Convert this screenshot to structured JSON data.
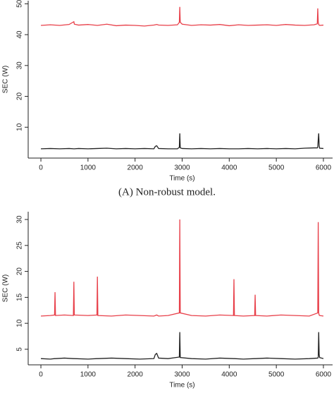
{
  "chart_data": [
    {
      "type": "line",
      "caption": "(A) Non-robust model.",
      "x_label": "Time (s)",
      "y_label": "SEC (W)",
      "x": [
        0,
        200,
        400,
        600,
        700,
        710,
        800,
        1000,
        1200,
        1400,
        1600,
        1800,
        2000,
        2200,
        2400,
        2430,
        2460,
        2500,
        2700,
        2900,
        2940,
        2950,
        2960,
        3000,
        3200,
        3400,
        3600,
        3800,
        4000,
        4200,
        4400,
        4600,
        4800,
        5000,
        5200,
        5400,
        5600,
        5800,
        5870,
        5880,
        5890,
        5900,
        5910,
        5920,
        6000
      ],
      "series": [
        {
          "color": "#e8404a",
          "values": [
            43,
            43.2,
            43,
            43.3,
            44.2,
            43.4,
            43.1,
            43.3,
            43,
            43.4,
            42.9,
            43.1,
            43,
            42.8,
            43.1,
            43.2,
            43.3,
            43.1,
            43,
            43.2,
            44,
            49,
            44,
            43.4,
            43,
            43.2,
            43.1,
            43.3,
            42.9,
            43.2,
            43,
            43.1,
            43.2,
            43,
            43.3,
            43.1,
            43,
            43.2,
            43.5,
            48.5,
            44,
            43.3,
            43.1,
            43,
            43.1
          ]
        },
        {
          "color": "#222222",
          "values": [
            3,
            3.1,
            3,
            3.1,
            3,
            3,
            3.1,
            3,
            3.1,
            3.2,
            3,
            3.1,
            3,
            3.1,
            3,
            3.8,
            4,
            3.1,
            3,
            3,
            3.5,
            8,
            3.3,
            3.1,
            3,
            3.1,
            3,
            3.1,
            3,
            3,
            3.1,
            3,
            3.1,
            3,
            3.1,
            3,
            3.2,
            3.3,
            3.3,
            3.5,
            6,
            8,
            4,
            3.2,
            3.1
          ]
        }
      ],
      "xlim": [
        -270,
        6195
      ],
      "xticks": [
        0,
        1000,
        2000,
        3000,
        4000,
        5000,
        6000
      ],
      "ylim": [
        0,
        51
      ],
      "yticks": [
        10,
        20,
        30,
        40,
        50
      ]
    },
    {
      "type": "line",
      "x_label": "Time (s)",
      "y_label": "SEC (W)",
      "x": [
        0,
        200,
        290,
        300,
        310,
        500,
        690,
        700,
        710,
        1000,
        1190,
        1200,
        1210,
        1500,
        1800,
        2100,
        2400,
        2430,
        2460,
        2500,
        2700,
        2940,
        2950,
        2960,
        3200,
        3500,
        3800,
        4090,
        4100,
        4110,
        4300,
        4540,
        4550,
        4560,
        4800,
        5100,
        5400,
        5700,
        5880,
        5890,
        5900,
        5910,
        5920,
        6000
      ],
      "series": [
        {
          "color": "#e8404a",
          "values": [
            11.4,
            11.5,
            11.6,
            16,
            11.5,
            11.6,
            11.5,
            18,
            11.6,
            11.5,
            11.6,
            19,
            11.5,
            11.4,
            11.6,
            11.5,
            11.4,
            11.5,
            11.6,
            11.4,
            11.5,
            12,
            30,
            12,
            11.5,
            11.4,
            11.6,
            11.5,
            18.5,
            11.5,
            11.4,
            11.5,
            15.5,
            11.5,
            11.4,
            11.6,
            11.5,
            11.4,
            12,
            29.5,
            12,
            11.6,
            11.5,
            11.4
          ]
        },
        {
          "color": "#222222",
          "values": [
            3.2,
            3.1,
            3.2,
            3.2,
            3.2,
            3.3,
            3.2,
            3.2,
            3.2,
            3.1,
            3.2,
            3.2,
            3.2,
            3.3,
            3.2,
            3.1,
            3.2,
            4,
            4.2,
            3.3,
            3.2,
            3.5,
            8.3,
            3.4,
            3.2,
            3.1,
            3.3,
            3.2,
            3.2,
            3.2,
            3.1,
            3.2,
            3.2,
            3.2,
            3.3,
            3.2,
            3.1,
            3.2,
            3.3,
            3.5,
            8.3,
            4,
            3.4,
            3.2
          ]
        }
      ],
      "xlim": [
        -270,
        6195
      ],
      "xticks": [
        0,
        1000,
        2000,
        3000,
        4000,
        5000,
        6000
      ],
      "ylim": [
        2,
        31.5
      ],
      "yticks": [
        5,
        10,
        15,
        20,
        25,
        30
      ]
    }
  ]
}
